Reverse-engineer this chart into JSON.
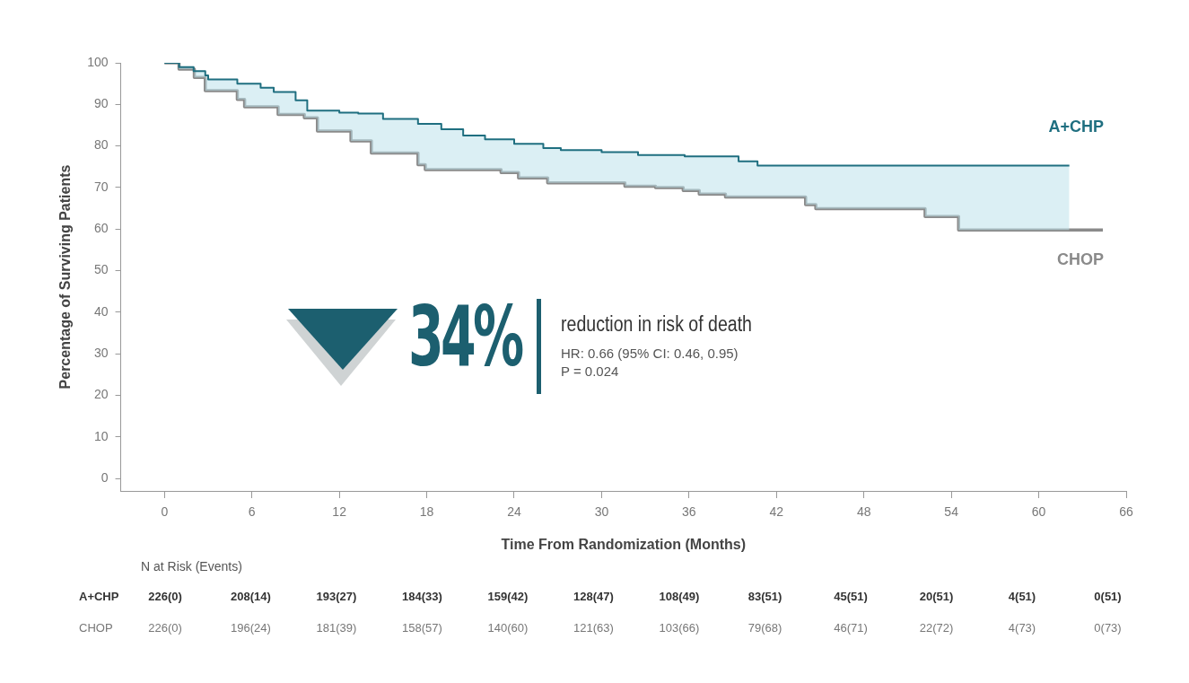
{
  "chart_data": {
    "type": "step",
    "xlabel": "Time From Randomization (Months)",
    "ylabel": "Percentage of Surviving Patients",
    "xlim": [
      -3,
      66
    ],
    "xticks": [
      0,
      6,
      12,
      18,
      24,
      30,
      36,
      42,
      48,
      54,
      60,
      66
    ],
    "ylim": [
      -3,
      100
    ],
    "yticks": [
      0,
      10,
      20,
      30,
      40,
      50,
      60,
      70,
      80,
      90,
      100
    ],
    "grid": false,
    "legend": false,
    "marker": "none",
    "line_style": "solid",
    "series": [
      {
        "name": "A+CHP",
        "color": "#1f6f80",
        "x": [
          0,
          1,
          2,
          2.8,
          3,
          5,
          6.6,
          7.5,
          9,
          9.8,
          12,
          13.3,
          15,
          17.4,
          19,
          20.5,
          22,
          24,
          26,
          27.2,
          30,
          32.5,
          35.7,
          39.4,
          40.7,
          62.1
        ],
        "values": [
          100,
          99,
          98,
          97,
          96,
          95,
          94,
          93,
          91,
          88.5,
          88,
          87.8,
          86.5,
          85.3,
          84,
          82.5,
          81.6,
          80.5,
          79.5,
          79,
          78.5,
          77.8,
          77.5,
          76.3,
          75.3,
          75.3
        ]
      },
      {
        "name": "CHOP",
        "color": "#8a8a8a",
        "x": [
          0,
          1,
          2.05,
          2.8,
          5,
          5.5,
          7.8,
          9.6,
          10.5,
          12.8,
          14.2,
          17.4,
          17.9,
          23.1,
          24.3,
          26.3,
          31.6,
          33.7,
          35.6,
          36.7,
          38.5,
          44,
          44.7,
          52.2,
          54.5,
          64.4
        ],
        "values": [
          100,
          98.5,
          96.5,
          93.3,
          91.2,
          89.4,
          87.6,
          86.8,
          83.6,
          81.2,
          78.3,
          75.5,
          74.3,
          73.6,
          72.3,
          71.1,
          70.3,
          70,
          69.3,
          68.4,
          67.7,
          65.9,
          64.9,
          63,
          59.8,
          59.8
        ]
      }
    ],
    "annotations": [
      "34%",
      "reduction in risk of death",
      "HR: 0.66 (95% CI: 0.46, 0.95)",
      "P = 0.024",
      "N at Risk (Events)",
      "A+CHP",
      "226(0)",
      "208(14)",
      "193(27)",
      "184(33)",
      "159(42)",
      "128(47)",
      "108(49)",
      "83(51)",
      "45(51)",
      "20(51)",
      "4(51)",
      "0(51)",
      "CHOP",
      "226(0)",
      "196(24)",
      "181(39)",
      "158(57)",
      "140(60)",
      "121(63)",
      "103(66)",
      "79(68)",
      "46(71)",
      "22(72)",
      "4(73)",
      "0(73)"
    ]
  }
}
